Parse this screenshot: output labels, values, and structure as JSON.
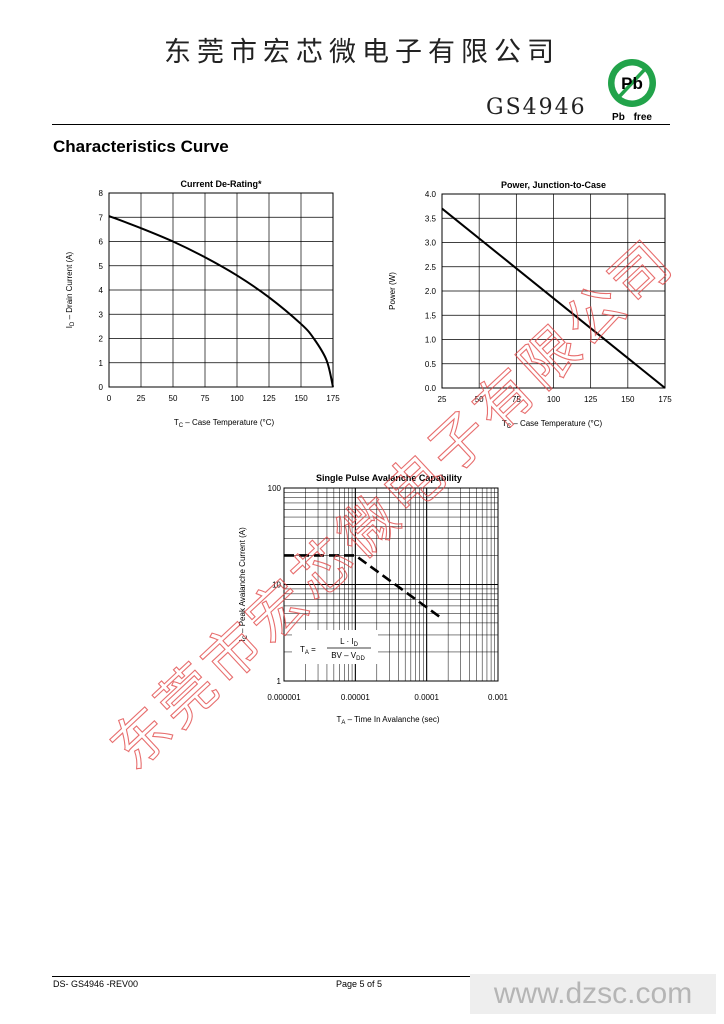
{
  "header": {
    "company": "东莞市宏芯微电子有限公司",
    "part_number": "GS4946"
  },
  "badge": {
    "symbol": "Pb",
    "caption": "Pb free",
    "color": "#22a34a"
  },
  "section_title": "Characteristics Curve",
  "chart_data": [
    {
      "type": "line",
      "title": "Current De-Rating*",
      "xlabel": "TC – Case Temperature (°C)",
      "ylabel": "ID – Drain Current (A)",
      "xlim": [
        0,
        175
      ],
      "ylim": [
        0,
        8
      ],
      "xticks": [
        0,
        25,
        50,
        75,
        100,
        125,
        150,
        175
      ],
      "yticks": [
        0,
        1,
        2,
        3,
        4,
        5,
        6,
        7,
        8
      ],
      "grid": true,
      "series": [
        {
          "x": [
            0,
            25,
            50,
            75,
            100,
            125,
            150,
            160,
            170,
            175
          ],
          "y": [
            7.05,
            6.55,
            6.0,
            5.35,
            4.6,
            3.7,
            2.6,
            2.0,
            1.1,
            0
          ]
        }
      ]
    },
    {
      "type": "line",
      "title": "Power, Junction-to-Case",
      "xlabel": "TC – Case Temperature (°C)",
      "ylabel": "Power (W)",
      "xlim": [
        25,
        175
      ],
      "ylim": [
        0,
        4
      ],
      "xticks": [
        25,
        50,
        75,
        100,
        125,
        150,
        175
      ],
      "yticks": [
        "0.0",
        "0.5",
        "1.0",
        "1.5",
        "2.0",
        "2.5",
        "3.0",
        "3.5",
        "4.0"
      ],
      "grid": true,
      "series": [
        {
          "x": [
            25,
            175
          ],
          "y": [
            3.7,
            0
          ]
        }
      ]
    },
    {
      "type": "line",
      "title": "Single Pulse Avalanche Capability",
      "xlabel": "TA – Time In Avalanche (sec)",
      "ylabel": "IC – Peak Avalanche Current (A)",
      "xscale": "log",
      "yscale": "log",
      "xlim": [
        1e-06,
        0.001
      ],
      "ylim": [
        1,
        100
      ],
      "xticks": [
        "0.000001",
        "0.00001",
        "0.0001",
        "0.001"
      ],
      "yticks": [
        "1",
        "10",
        "100"
      ],
      "grid": true,
      "series": [
        {
          "x": [
            1e-06,
            1e-05,
            0.00016
          ],
          "y": [
            20,
            20,
            4.5
          ],
          "style": "dashed"
        }
      ],
      "formula": {
        "lhs": "TA =",
        "numerator": "L · ID",
        "denominator": "BV – VDD"
      }
    }
  ],
  "watermark": {
    "text": "东莞市宏芯微电子有限公司",
    "color": "#e24a4a"
  },
  "footer": {
    "doc_id": "DS- GS4946 -REV00",
    "page": "Page 5 of 5",
    "site": "www.dzsc.com"
  }
}
